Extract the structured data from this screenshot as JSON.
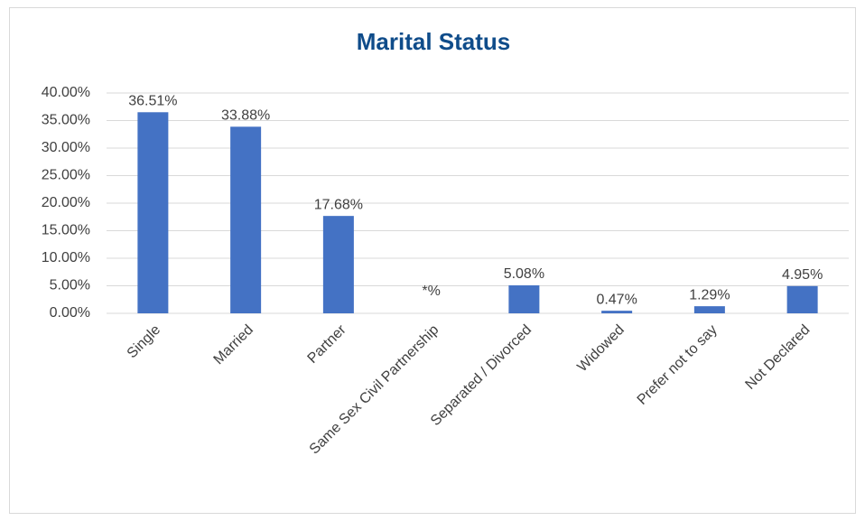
{
  "chart_data": {
    "type": "bar",
    "title": "Marital Status",
    "categories": [
      "Single",
      "Married",
      "Partner",
      "Same Sex Civil Partnership",
      "Separated / Divorced",
      "Widowed",
      "Prefer not to say",
      "Not Declared"
    ],
    "values": [
      36.51,
      33.88,
      17.68,
      null,
      5.08,
      0.47,
      1.29,
      4.95
    ],
    "value_labels": [
      "36.51%",
      "33.88%",
      "17.68%",
      "*%",
      "5.08%",
      "0.47%",
      "1.29%",
      "4.95%"
    ],
    "color": "#4472c4",
    "ylim": [
      0,
      40
    ],
    "yticks": [
      {
        "value": 0,
        "label": "0.00%"
      },
      {
        "value": 5,
        "label": "5.00%"
      },
      {
        "value": 10,
        "label": "10.00%"
      },
      {
        "value": 15,
        "label": "15.00%"
      },
      {
        "value": 20,
        "label": "20.00%"
      },
      {
        "value": 25,
        "label": "25.00%"
      },
      {
        "value": 30,
        "label": "30.00%"
      },
      {
        "value": 35,
        "label": "35.00%"
      },
      {
        "value": 40,
        "label": "40.00%"
      }
    ],
    "grid": true
  }
}
